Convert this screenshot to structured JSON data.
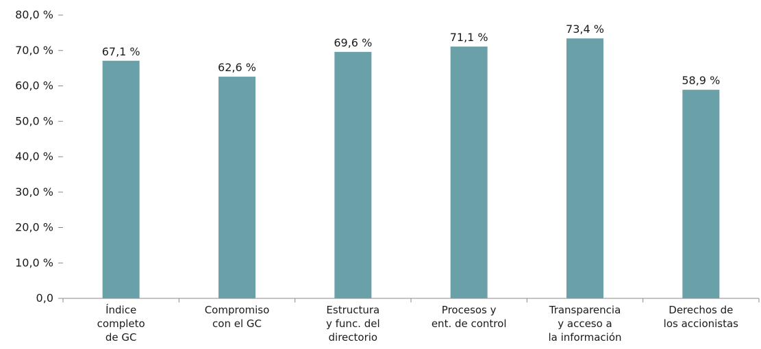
{
  "chart_data": {
    "type": "bar",
    "categories": [
      [
        "Índice",
        "completo",
        "de GC"
      ],
      [
        "Compromiso",
        "con el GC"
      ],
      [
        "Estructura",
        "y func. del",
        "directorio"
      ],
      [
        "Procesos y",
        "ent. de control"
      ],
      [
        "Transparencia",
        "y acceso a",
        "la información"
      ],
      [
        "Derechos de",
        "los accionistas"
      ]
    ],
    "values": [
      67.1,
      62.6,
      69.6,
      71.1,
      73.4,
      58.9
    ],
    "value_labels": [
      "67,1 %",
      "62,6 %",
      "69,6 %",
      "71,1 %",
      "73,4 %",
      "58,9 %"
    ],
    "ylim": [
      0,
      80
    ],
    "y_ticks": [
      0,
      10,
      20,
      30,
      40,
      50,
      60,
      70,
      80
    ],
    "y_tick_labels": [
      "0,0",
      "10,0 %",
      "20,0 %",
      "30,0 %",
      "40,0 %",
      "50,0 %",
      "60,0 %",
      "70,0 %",
      "80,0 %"
    ],
    "bar_color": "#6aa0a8",
    "title": "",
    "xlabel": "",
    "ylabel": "",
    "grid": false,
    "legend": "none"
  }
}
